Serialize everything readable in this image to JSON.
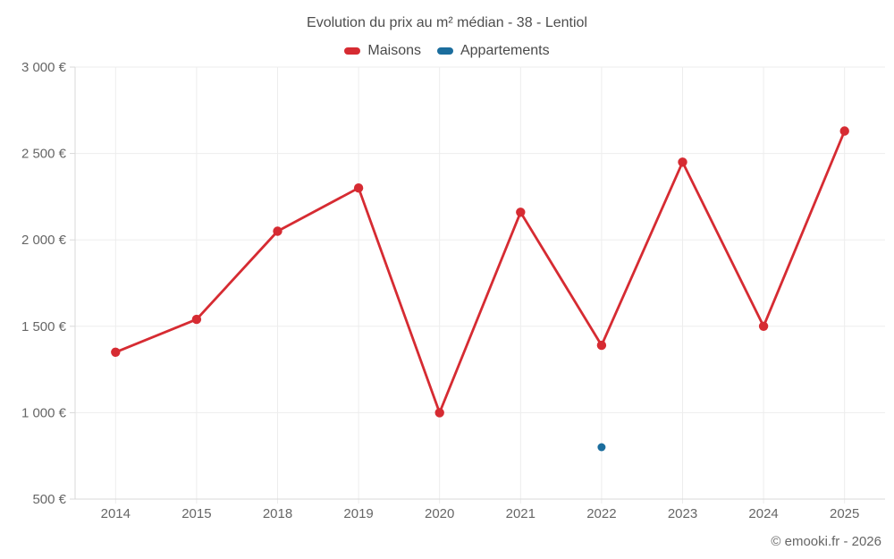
{
  "header": {
    "title": "Evolution du prix au m² médian - 38 - Lentiol"
  },
  "legend": {
    "items": [
      {
        "id": "maisons",
        "label": "Maisons",
        "color": "#d62b32"
      },
      {
        "id": "appartements",
        "label": "Appartements",
        "color": "#1b6d9d"
      }
    ]
  },
  "footer": {
    "copyright": "© emooki.fr - 2026"
  },
  "chart_data": {
    "type": "line",
    "title": "Evolution du prix au m² médian - 38 - Lentiol",
    "categories": [
      "2014",
      "2015",
      "2018",
      "2019",
      "2020",
      "2021",
      "2022",
      "2023",
      "2024",
      "2025"
    ],
    "series": [
      {
        "name": "Maisons",
        "color": "#d62b32",
        "values": [
          1350,
          1540,
          2050,
          2300,
          1000,
          2160,
          1390,
          2450,
          1500,
          2630
        ]
      },
      {
        "name": "Appartements",
        "color": "#1b6d9d",
        "values": [
          null,
          null,
          null,
          null,
          null,
          null,
          800,
          null,
          null,
          null
        ]
      }
    ],
    "ylim": [
      500,
      3000
    ],
    "yticks": [
      500,
      1000,
      1500,
      2000,
      2500,
      3000
    ],
    "ytick_labels": [
      "500 €",
      "1 000 €",
      "1 500 €",
      "2 000 €",
      "2 500 €",
      "3 000 €"
    ],
    "xlabel": "",
    "ylabel": "",
    "grid": true,
    "legend_position": "top"
  },
  "style": {
    "grid_color": "#ededed",
    "axis_color": "#d9d9d9",
    "tick_label_color": "#666666"
  }
}
